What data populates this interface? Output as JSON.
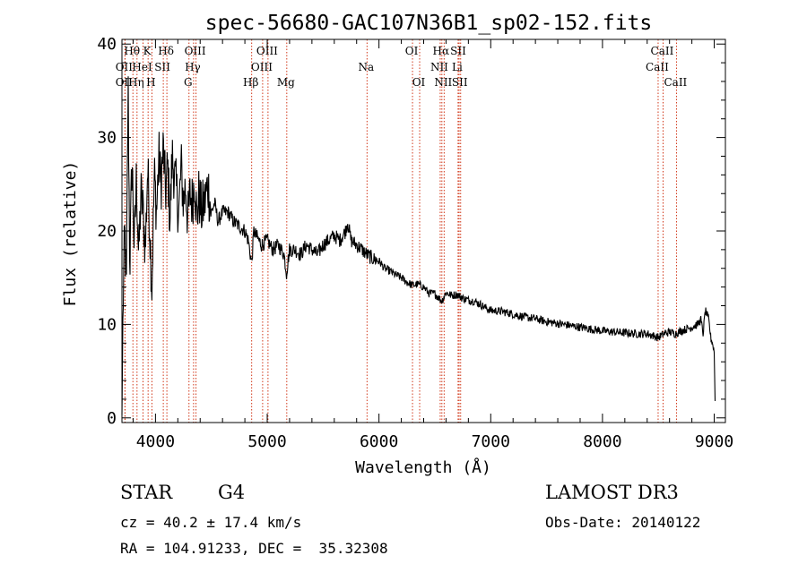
{
  "chart_data": {
    "type": "line",
    "title": "spec-56680-GAC107N36B1_sp02-152.fits",
    "xlabel": "Wavelength (Å)",
    "ylabel": "Flux (relative)",
    "xlim": [
      3700,
      9100
    ],
    "ylim": [
      -0.5,
      40.5
    ],
    "xticks": [
      4000,
      5000,
      6000,
      7000,
      8000,
      9000
    ],
    "yticks": [
      0,
      10,
      20,
      30,
      40
    ],
    "spectrum": {
      "name": "flux",
      "x": [
        3700,
        3710,
        3725,
        3740,
        3755,
        3770,
        3790,
        3810,
        3830,
        3850,
        3870,
        3890,
        3910,
        3930,
        3950,
        3968,
        3990,
        4010,
        4030,
        4050,
        4070,
        4090,
        4110,
        4130,
        4150,
        4170,
        4190,
        4210,
        4230,
        4250,
        4270,
        4290,
        4310,
        4330,
        4350,
        4370,
        4390,
        4410,
        4440,
        4470,
        4500,
        4530,
        4560,
        4600,
        4650,
        4700,
        4750,
        4800,
        4830,
        4861,
        4880,
        4900,
        4950,
        5000,
        5050,
        5100,
        5150,
        5172,
        5200,
        5250,
        5300,
        5350,
        5400,
        5450,
        5500,
        5550,
        5600,
        5650,
        5700,
        5720,
        5750,
        5800,
        5850,
        5890,
        5950,
        6000,
        6050,
        6100,
        6150,
        6200,
        6250,
        6300,
        6350,
        6400,
        6450,
        6500,
        6563,
        6600,
        6650,
        6700,
        6750,
        6800,
        6850,
        6900,
        6950,
        7000,
        7100,
        7200,
        7300,
        7400,
        7500,
        7600,
        7700,
        7800,
        7900,
        8000,
        8100,
        8200,
        8300,
        8400,
        8450,
        8500,
        8550,
        8600,
        8650,
        8700,
        8750,
        8800,
        8850,
        8880,
        8900,
        8920,
        8950,
        8970,
        8985,
        9000,
        9010
      ],
      "y": [
        0.3,
        12,
        20,
        14,
        36,
        16,
        28,
        18,
        26,
        17,
        24,
        22,
        18,
        27,
        20,
        14,
        26,
        22,
        28,
        25,
        29,
        24,
        27,
        21,
        28,
        26,
        24,
        22,
        27,
        23,
        25,
        21,
        24,
        23,
        26,
        21,
        24,
        22,
        23,
        25,
        22,
        23,
        21,
        22,
        22,
        21,
        20.5,
        20,
        19,
        16.5,
        20,
        19.5,
        18.5,
        19,
        18,
        18.5,
        17.5,
        15.5,
        18,
        18,
        17.5,
        18.5,
        18,
        17.5,
        18.5,
        19,
        19.5,
        19,
        20,
        21,
        19,
        18.5,
        18,
        17.5,
        17,
        16.8,
        16,
        15.7,
        15.3,
        15,
        14.5,
        14.2,
        14.3,
        14,
        13.3,
        13.3,
        12.5,
        13.4,
        13.1,
        13.2,
        12.8,
        12.6,
        12.5,
        12.2,
        11.8,
        11.5,
        11.4,
        11.1,
        10.8,
        10.6,
        10.3,
        10.1,
        9.9,
        9.7,
        9.5,
        9.3,
        9.2,
        9.1,
        9.0,
        9.0,
        8.8,
        8.6,
        9.0,
        9.2,
        9.0,
        9.3,
        9.5,
        9.7,
        10.0,
        10.5,
        9.0,
        11.5,
        10.5,
        8.5,
        8.0,
        7.0,
        0.5
      ]
    },
    "lines": [
      {
        "name": "Hθ",
        "wavelength": 3798,
        "row": 0
      },
      {
        "name": "OII",
        "wavelength": 3727,
        "row": 1
      },
      {
        "name": "OII",
        "wavelength": 3727,
        "row": 2
      },
      {
        "name": "K",
        "wavelength": 3934,
        "row": 0
      },
      {
        "name": "HeI",
        "wavelength": 3889,
        "row": 1
      },
      {
        "name": "Hη",
        "wavelength": 3835,
        "row": 2
      },
      {
        "name": "SII",
        "wavelength": 4070,
        "row": 1
      },
      {
        "name": "H",
        "wavelength": 3968,
        "row": 2
      },
      {
        "name": "Hδ",
        "wavelength": 4102,
        "row": 0
      },
      {
        "name": "OIII",
        "wavelength": 4363,
        "row": 0
      },
      {
        "name": "Hγ",
        "wavelength": 4341,
        "row": 1
      },
      {
        "name": "G",
        "wavelength": 4300,
        "row": 2
      },
      {
        "name": "Hβ",
        "wavelength": 4861,
        "row": 2
      },
      {
        "name": "OIII",
        "wavelength": 5007,
        "row": 0
      },
      {
        "name": "OIII",
        "wavelength": 4959,
        "row": 1
      },
      {
        "name": "Mg",
        "wavelength": 5175,
        "row": 2
      },
      {
        "name": "Na",
        "wavelength": 5893,
        "row": 1
      },
      {
        "name": "OI",
        "wavelength": 6300,
        "row": 0
      },
      {
        "name": "OI",
        "wavelength": 6364,
        "row": 2
      },
      {
        "name": "Hα",
        "wavelength": 6563,
        "row": 0
      },
      {
        "name": "SII",
        "wavelength": 6717,
        "row": 0
      },
      {
        "name": "NII",
        "wavelength": 6548,
        "row": 1
      },
      {
        "name": "Li",
        "wavelength": 6708,
        "row": 1
      },
      {
        "name": "NII",
        "wavelength": 6583,
        "row": 2
      },
      {
        "name": "SII",
        "wavelength": 6731,
        "row": 2
      },
      {
        "name": "CaII",
        "wavelength": 8542,
        "row": 0
      },
      {
        "name": "CaII",
        "wavelength": 8498,
        "row": 1
      },
      {
        "name": "CaII",
        "wavelength": 8662,
        "row": 2
      }
    ],
    "line_color": "#cc2200",
    "trace_color": "#000000"
  },
  "info": {
    "object_type": "STAR",
    "subclass": "G4",
    "survey": "LAMOST DR3",
    "redshift": "cz = 40.2 ± 17.4 km/s",
    "obs_date": "Obs-Date: 20140122",
    "coords": "RA = 104.91233, DEC =  35.32308"
  }
}
